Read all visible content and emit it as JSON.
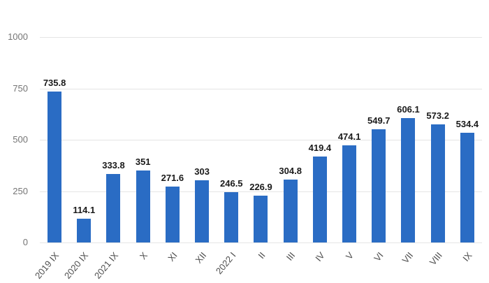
{
  "chart_data": {
    "type": "bar",
    "title": "",
    "xlabel": "",
    "ylabel": "",
    "categories": [
      "2019 IX",
      "2020 IX",
      "2021 IX",
      "X",
      "XI",
      "XII",
      "2022 I",
      "II",
      "III",
      "IV",
      "V",
      "VI",
      "VII",
      "VIII",
      "IX"
    ],
    "values": [
      735.8,
      114.1,
      333.8,
      351,
      271.6,
      303,
      246.5,
      226.9,
      304.8,
      419.4,
      474.1,
      549.7,
      606.1,
      573.2,
      534.4
    ],
    "value_labels": [
      "735.8",
      "114.1",
      "333.8",
      "351",
      "271.6",
      "303",
      "246.5",
      "226.9",
      "304.8",
      "419.4",
      "474.1",
      "549.7",
      "606.1",
      "573.2",
      "534.4"
    ],
    "ylim": [
      0,
      1000
    ],
    "yticks": [
      "0",
      "250",
      "500",
      "750",
      "1000"
    ],
    "grid": true,
    "legend": false,
    "colors": {
      "bar": "#2a6cc4",
      "gridline": "#e5e5e5",
      "y_tick_text": "#757575",
      "x_tick_text": "#4f4f4f",
      "value_label_text": "#1a1a1a",
      "background": "#ffffff"
    }
  }
}
